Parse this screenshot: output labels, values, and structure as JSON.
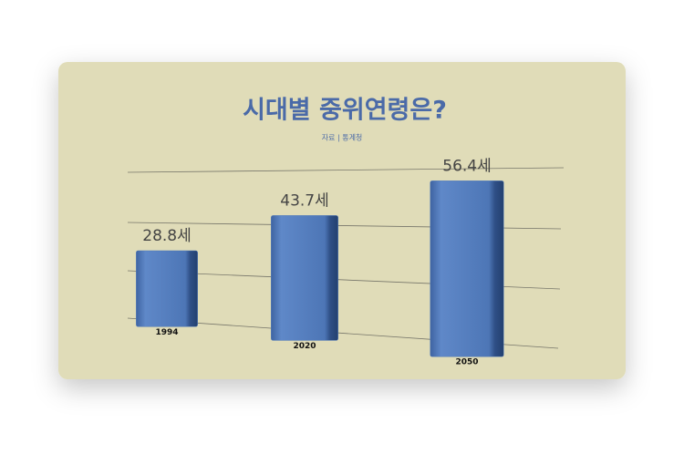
{
  "chart_data": {
    "type": "bar",
    "title": "시대별 중위연령은?",
    "subtitle": "자료 | 통계청",
    "categories": [
      "1994",
      "2020",
      "2050"
    ],
    "values": [
      28.8,
      43.7,
      56.4
    ],
    "value_labels": [
      "28.8세",
      "43.7세",
      "56.4세"
    ],
    "color": "#5079b9",
    "ylim": [
      0,
      60
    ]
  }
}
